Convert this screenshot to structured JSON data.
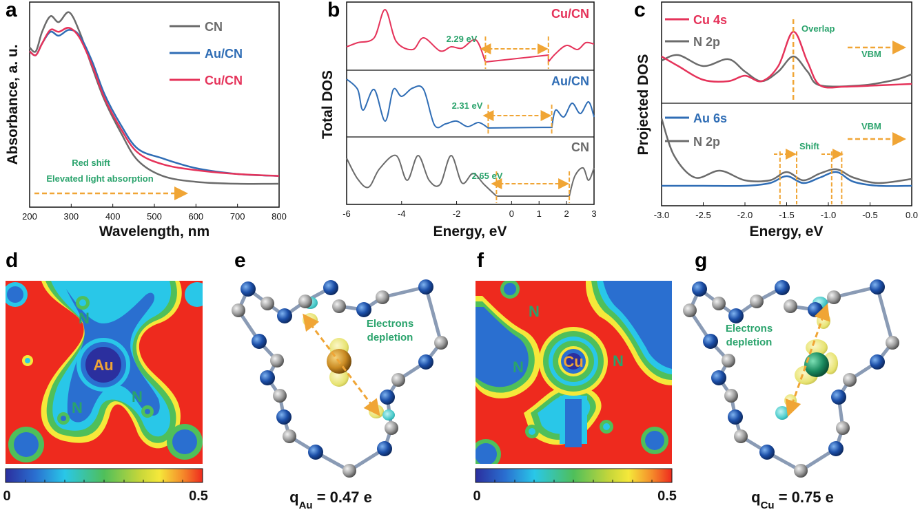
{
  "panels": {
    "a": {
      "label": "a",
      "ylabel": "Absorbance, a. u.",
      "xlabel": "Wavelength, nm",
      "xticks": [
        "200",
        "300",
        "400",
        "500",
        "600",
        "700",
        "800"
      ],
      "legend": [
        {
          "name": "CN",
          "color": "#6b6b6b"
        },
        {
          "name": "Au/CN",
          "color": "#2f6db5"
        },
        {
          "name": "Cu/CN",
          "color": "#e5335a"
        }
      ],
      "note1": "Red shift",
      "note2": "Elevated light absorption"
    },
    "b": {
      "label": "b",
      "ylabel": "Total DOS",
      "xlabel": "Energy, eV",
      "xticks": [
        "-6",
        "-4",
        "-2",
        "0",
        "1",
        "2",
        "3"
      ],
      "series": [
        {
          "name": "Cu/CN",
          "gap": "2.29 eV",
          "color": "#e5335a"
        },
        {
          "name": "Au/CN",
          "gap": "2.31 eV",
          "color": "#2f6db5"
        },
        {
          "name": "CN",
          "gap": "2.65 eV",
          "color": "#6b6b6b"
        }
      ]
    },
    "c": {
      "label": "c",
      "ylabel": "Projected DOS",
      "xlabel": "Energy, eV",
      "xticks": [
        "-3.0",
        "-2.5",
        "-2.0",
        "-1.5",
        "-1.0",
        "-0.5",
        "0.0"
      ],
      "top_legend": [
        {
          "name": "Cu 4s",
          "color": "#e5335a"
        },
        {
          "name": "N 2p",
          "color": "#6b6b6b"
        }
      ],
      "bottom_legend": [
        {
          "name": "Au 6s",
          "color": "#2f6db5"
        },
        {
          "name": "N 2p",
          "color": "#6b6b6b"
        }
      ],
      "overlap": "Overlap",
      "shift": "Shift",
      "vbm": "VBM"
    },
    "d": {
      "label": "d",
      "metal": "Au",
      "n": "N",
      "cb_min": "0",
      "cb_max": "0.5"
    },
    "e": {
      "label": "e",
      "note_line1": "Electrons",
      "note_line2": "depletion",
      "q_pre": "q",
      "q_sub": "Au",
      "q_post": " = 0.47 e"
    },
    "f": {
      "label": "f",
      "metal": "Cu",
      "n": "N",
      "cb_min": "0",
      "cb_max": "0.5"
    },
    "g": {
      "label": "g",
      "note_line1": "Electrons",
      "note_line2": "depletion",
      "q_pre": "q",
      "q_sub": "Cu",
      "q_post": " = 0.75 e"
    }
  },
  "chart_data": [
    {
      "type": "line",
      "title": "a",
      "xlabel": "Wavelength, nm",
      "ylabel": "Absorbance, a. u.",
      "xlim": [
        200,
        800
      ],
      "series": [
        {
          "name": "CN",
          "color": "#6b6b6b",
          "x": [
            200,
            215,
            230,
            250,
            270,
            295,
            320,
            350,
            380,
            420,
            460,
            520,
            600,
            700,
            800
          ],
          "y": [
            0.82,
            0.8,
            0.9,
            0.98,
            0.95,
            1.0,
            0.9,
            0.72,
            0.55,
            0.38,
            0.24,
            0.16,
            0.13,
            0.12,
            0.12
          ]
        },
        {
          "name": "Au/CN",
          "color": "#2f6db5",
          "x": [
            200,
            215,
            230,
            250,
            270,
            295,
            320,
            350,
            380,
            420,
            460,
            520,
            600,
            700,
            800
          ],
          "y": [
            0.8,
            0.78,
            0.84,
            0.9,
            0.88,
            0.91,
            0.88,
            0.75,
            0.58,
            0.42,
            0.3,
            0.25,
            0.2,
            0.17,
            0.16
          ]
        },
        {
          "name": "Cu/CN",
          "color": "#e5335a",
          "x": [
            200,
            215,
            230,
            250,
            270,
            295,
            320,
            350,
            380,
            420,
            460,
            520,
            600,
            700,
            800
          ],
          "y": [
            0.8,
            0.78,
            0.84,
            0.91,
            0.9,
            0.92,
            0.87,
            0.73,
            0.56,
            0.4,
            0.28,
            0.22,
            0.19,
            0.17,
            0.16
          ]
        }
      ]
    },
    {
      "type": "line",
      "title": "b",
      "xlabel": "Energy, eV",
      "ylabel": "Total DOS",
      "xlim": [
        -6,
        3
      ],
      "series": [
        {
          "name": "Cu/CN",
          "band_gap_eV": 2.29,
          "gap_range": [
            -0.95,
            1.34
          ]
        },
        {
          "name": "Au/CN",
          "band_gap_eV": 2.31,
          "gap_range": [
            -0.85,
            1.46
          ]
        },
        {
          "name": "CN",
          "band_gap_eV": 2.65,
          "gap_range": [
            -0.55,
            2.1
          ]
        }
      ]
    },
    {
      "type": "line",
      "title": "c",
      "xlabel": "Energy, eV",
      "ylabel": "Projected DOS",
      "xlim": [
        -3.0,
        0.0
      ],
      "series": [
        {
          "name": "Cu 4s",
          "peak_eV": -1.42
        },
        {
          "name": "N 2p (Cu)",
          "peak_eV": -1.42
        },
        {
          "name": "Au 6s",
          "peaks_eV": [
            -1.5,
            -0.9
          ]
        },
        {
          "name": "N 2p (Au)",
          "peaks_eV": [
            -1.5,
            -0.9
          ]
        }
      ]
    }
  ]
}
